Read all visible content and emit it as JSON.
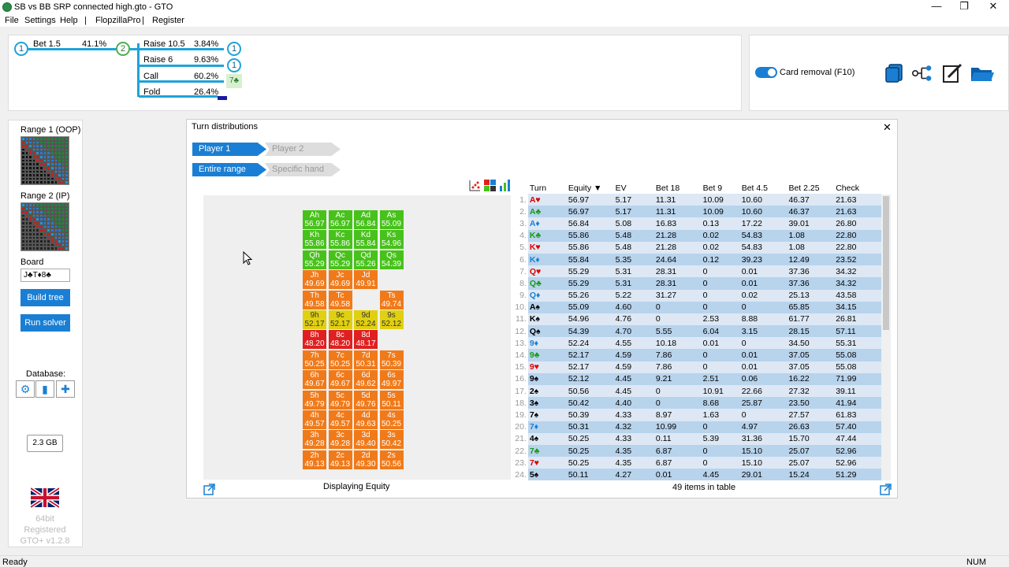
{
  "window": {
    "title": "SB vs BB SRP connected high.gto - GTO",
    "minimize": "—",
    "maximize": "❐",
    "close": "✕"
  },
  "menu": [
    "File",
    "Settings",
    "Help",
    "|",
    "FlopzillaPro",
    "|",
    "Register"
  ],
  "tree": {
    "node1": "1",
    "bet_label": "Bet 1.5",
    "bet_pct": "41.1%",
    "node2": "2",
    "branches": [
      {
        "label": "Raise 10.5",
        "pct": "3.84%",
        "node": "1"
      },
      {
        "label": "Raise 6",
        "pct": "9.63%",
        "node": "1"
      },
      {
        "label": "Call",
        "pct": "60.2%",
        "node": "7♣"
      },
      {
        "label": "Fold",
        "pct": "26.4%"
      }
    ]
  },
  "tools": {
    "card_removal": "Card removal (F10)"
  },
  "left": {
    "range1": "Range 1 (OOP)",
    "range2": "Range 2 (IP)",
    "board_label": "Board",
    "board_value": "J♣T♦8♣",
    "build_tree": "Build tree",
    "run_solver": "Run solver",
    "database": "Database:",
    "memory": "2.3 GB",
    "version_lines": [
      "64bit",
      "Registered",
      "GTO+ v1.2.8"
    ]
  },
  "turn": {
    "title": "Turn distributions",
    "close": "✕",
    "tabs_player": [
      "Player 1",
      "Player 2"
    ],
    "tabs_range": [
      "Entire range",
      "Specific hand"
    ],
    "displaying": "Displaying Equity",
    "items_count": "49 items in table"
  },
  "colors": {
    "accent": "#1a7fd4",
    "green": "#47c21a",
    "orange": "#f07a1a",
    "red": "#e02020",
    "yellow": "#e0d010"
  },
  "cards": [
    {
      "c": "Ah",
      "v": "56.97",
      "col": "green",
      "r": 0,
      "k": 0
    },
    {
      "c": "Ac",
      "v": "56.97",
      "col": "green",
      "r": 0,
      "k": 1
    },
    {
      "c": "Ad",
      "v": "56.84",
      "col": "green",
      "r": 0,
      "k": 2
    },
    {
      "c": "As",
      "v": "55.09",
      "col": "green",
      "r": 0,
      "k": 3
    },
    {
      "c": "Kh",
      "v": "55.86",
      "col": "green",
      "r": 1,
      "k": 0
    },
    {
      "c": "Kc",
      "v": "55.86",
      "col": "green",
      "r": 1,
      "k": 1
    },
    {
      "c": "Kd",
      "v": "55.84",
      "col": "green",
      "r": 1,
      "k": 2
    },
    {
      "c": "Ks",
      "v": "54.96",
      "col": "green",
      "r": 1,
      "k": 3
    },
    {
      "c": "Qh",
      "v": "55.29",
      "col": "green",
      "r": 2,
      "k": 0
    },
    {
      "c": "Qc",
      "v": "55.29",
      "col": "green",
      "r": 2,
      "k": 1
    },
    {
      "c": "Qd",
      "v": "55.26",
      "col": "green",
      "r": 2,
      "k": 2
    },
    {
      "c": "Qs",
      "v": "54.39",
      "col": "green",
      "r": 2,
      "k": 3
    },
    {
      "c": "Jh",
      "v": "49.69",
      "col": "orange",
      "r": 3,
      "k": 0
    },
    {
      "c": "Jc",
      "v": "49.69",
      "col": "orange",
      "r": 3,
      "k": 1
    },
    {
      "c": "Jd",
      "v": "49.91",
      "col": "orange",
      "r": 3,
      "k": 2
    },
    {
      "c": "Th",
      "v": "49.58",
      "col": "orange",
      "r": 4,
      "k": 0
    },
    {
      "c": "Tc",
      "v": "49.58",
      "col": "orange",
      "r": 4,
      "k": 1
    },
    {
      "c": "Ts",
      "v": "49.74",
      "col": "orange",
      "r": 4,
      "k": 3
    },
    {
      "c": "9h",
      "v": "52.17",
      "col": "yellow",
      "r": 5,
      "k": 0
    },
    {
      "c": "9c",
      "v": "52.17",
      "col": "yellow",
      "r": 5,
      "k": 1
    },
    {
      "c": "9d",
      "v": "52.24",
      "col": "yellow",
      "r": 5,
      "k": 2
    },
    {
      "c": "9s",
      "v": "52.12",
      "col": "yellow",
      "r": 5,
      "k": 3
    },
    {
      "c": "8h",
      "v": "48.20",
      "col": "red",
      "r": 6,
      "k": 0
    },
    {
      "c": "8c",
      "v": "48.20",
      "col": "red",
      "r": 6,
      "k": 1
    },
    {
      "c": "8d",
      "v": "48.17",
      "col": "red",
      "r": 6,
      "k": 2
    },
    {
      "c": "7h",
      "v": "50.25",
      "col": "orange",
      "r": 7,
      "k": 0
    },
    {
      "c": "7c",
      "v": "50.25",
      "col": "orange",
      "r": 7,
      "k": 1
    },
    {
      "c": "7d",
      "v": "50.31",
      "col": "orange",
      "r": 7,
      "k": 2
    },
    {
      "c": "7s",
      "v": "50.39",
      "col": "orange",
      "r": 7,
      "k": 3
    },
    {
      "c": "6h",
      "v": "49.67",
      "col": "orange",
      "r": 8,
      "k": 0
    },
    {
      "c": "6c",
      "v": "49.67",
      "col": "orange",
      "r": 8,
      "k": 1
    },
    {
      "c": "6d",
      "v": "49.62",
      "col": "orange",
      "r": 8,
      "k": 2
    },
    {
      "c": "6s",
      "v": "49.97",
      "col": "orange",
      "r": 8,
      "k": 3
    },
    {
      "c": "5h",
      "v": "49.79",
      "col": "orange",
      "r": 9,
      "k": 0
    },
    {
      "c": "5c",
      "v": "49.79",
      "col": "orange",
      "r": 9,
      "k": 1
    },
    {
      "c": "5d",
      "v": "49.76",
      "col": "orange",
      "r": 9,
      "k": 2
    },
    {
      "c": "5s",
      "v": "50.11",
      "col": "orange",
      "r": 9,
      "k": 3
    },
    {
      "c": "4h",
      "v": "49.57",
      "col": "orange",
      "r": 10,
      "k": 0
    },
    {
      "c": "4c",
      "v": "49.57",
      "col": "orange",
      "r": 10,
      "k": 1
    },
    {
      "c": "4d",
      "v": "49.63",
      "col": "orange",
      "r": 10,
      "k": 2
    },
    {
      "c": "4s",
      "v": "50.25",
      "col": "orange",
      "r": 10,
      "k": 3
    },
    {
      "c": "3h",
      "v": "49.28",
      "col": "orange",
      "r": 11,
      "k": 0
    },
    {
      "c": "3c",
      "v": "49.28",
      "col": "orange",
      "r": 11,
      "k": 1
    },
    {
      "c": "3d",
      "v": "49.40",
      "col": "orange",
      "r": 11,
      "k": 2
    },
    {
      "c": "3s",
      "v": "50.42",
      "col": "orange",
      "r": 11,
      "k": 3
    },
    {
      "c": "2h",
      "v": "49.13",
      "col": "orange",
      "r": 12,
      "k": 0
    },
    {
      "c": "2c",
      "v": "49.13",
      "col": "orange",
      "r": 12,
      "k": 1
    },
    {
      "c": "2d",
      "v": "49.30",
      "col": "orange",
      "r": 12,
      "k": 2
    },
    {
      "c": "2s",
      "v": "50.56",
      "col": "orange",
      "r": 12,
      "k": 3
    }
  ],
  "table": {
    "headers": [
      "Turn",
      "Equity ▼",
      "EV",
      "Bet 18",
      "Bet 9",
      "Bet 4.5",
      "Bet 2.25",
      "Check"
    ],
    "rows": [
      [
        "1.",
        "A♥",
        "56.97",
        "5.17",
        "11.31",
        "10.09",
        "10.60",
        "46.37",
        "21.63"
      ],
      [
        "2.",
        "A♣",
        "56.97",
        "5.17",
        "11.31",
        "10.09",
        "10.60",
        "46.37",
        "21.63"
      ],
      [
        "3.",
        "A♦",
        "56.84",
        "5.08",
        "16.83",
        "0.13",
        "17.22",
        "39.01",
        "26.80"
      ],
      [
        "4.",
        "K♣",
        "55.86",
        "5.48",
        "21.28",
        "0.02",
        "54.83",
        "1.08",
        "22.80"
      ],
      [
        "5.",
        "K♥",
        "55.86",
        "5.48",
        "21.28",
        "0.02",
        "54.83",
        "1.08",
        "22.80"
      ],
      [
        "6.",
        "K♦",
        "55.84",
        "5.35",
        "24.64",
        "0.12",
        "39.23",
        "12.49",
        "23.52"
      ],
      [
        "7.",
        "Q♥",
        "55.29",
        "5.31",
        "28.31",
        "0",
        "0.01",
        "37.36",
        "34.32"
      ],
      [
        "8.",
        "Q♣",
        "55.29",
        "5.31",
        "28.31",
        "0",
        "0.01",
        "37.36",
        "34.32"
      ],
      [
        "9.",
        "Q♦",
        "55.26",
        "5.22",
        "31.27",
        "0",
        "0.02",
        "25.13",
        "43.58"
      ],
      [
        "10.",
        "A♠",
        "55.09",
        "4.60",
        "0",
        "0",
        "0",
        "65.85",
        "34.15"
      ],
      [
        "11.",
        "K♠",
        "54.96",
        "4.76",
        "0",
        "2.53",
        "8.88",
        "61.77",
        "26.81"
      ],
      [
        "12.",
        "Q♠",
        "54.39",
        "4.70",
        "5.55",
        "6.04",
        "3.15",
        "28.15",
        "57.11"
      ],
      [
        "13.",
        "9♦",
        "52.24",
        "4.55",
        "10.18",
        "0.01",
        "0",
        "34.50",
        "55.31"
      ],
      [
        "14.",
        "9♣",
        "52.17",
        "4.59",
        "7.86",
        "0",
        "0.01",
        "37.05",
        "55.08"
      ],
      [
        "15.",
        "9♥",
        "52.17",
        "4.59",
        "7.86",
        "0",
        "0.01",
        "37.05",
        "55.08"
      ],
      [
        "16.",
        "9♠",
        "52.12",
        "4.45",
        "9.21",
        "2.51",
        "0.06",
        "16.22",
        "71.99"
      ],
      [
        "17.",
        "2♠",
        "50.56",
        "4.45",
        "0",
        "10.91",
        "22.66",
        "27.32",
        "39.11"
      ],
      [
        "18.",
        "3♠",
        "50.42",
        "4.40",
        "0",
        "8.68",
        "25.87",
        "23.50",
        "41.94"
      ],
      [
        "19.",
        "7♠",
        "50.39",
        "4.33",
        "8.97",
        "1.63",
        "0",
        "27.57",
        "61.83"
      ],
      [
        "20.",
        "7♦",
        "50.31",
        "4.32",
        "10.99",
        "0",
        "4.97",
        "26.63",
        "57.40"
      ],
      [
        "21.",
        "4♠",
        "50.25",
        "4.33",
        "0.11",
        "5.39",
        "31.36",
        "15.70",
        "47.44"
      ],
      [
        "22.",
        "7♣",
        "50.25",
        "4.35",
        "6.87",
        "0",
        "15.10",
        "25.07",
        "52.96"
      ],
      [
        "23.",
        "7♥",
        "50.25",
        "4.35",
        "6.87",
        "0",
        "15.10",
        "25.07",
        "52.96"
      ],
      [
        "24.",
        "5♠",
        "50.11",
        "4.27",
        "0.01",
        "4.45",
        "29.01",
        "15.24",
        "51.29"
      ]
    ]
  },
  "status": {
    "left": "Ready",
    "right": "NUM"
  }
}
